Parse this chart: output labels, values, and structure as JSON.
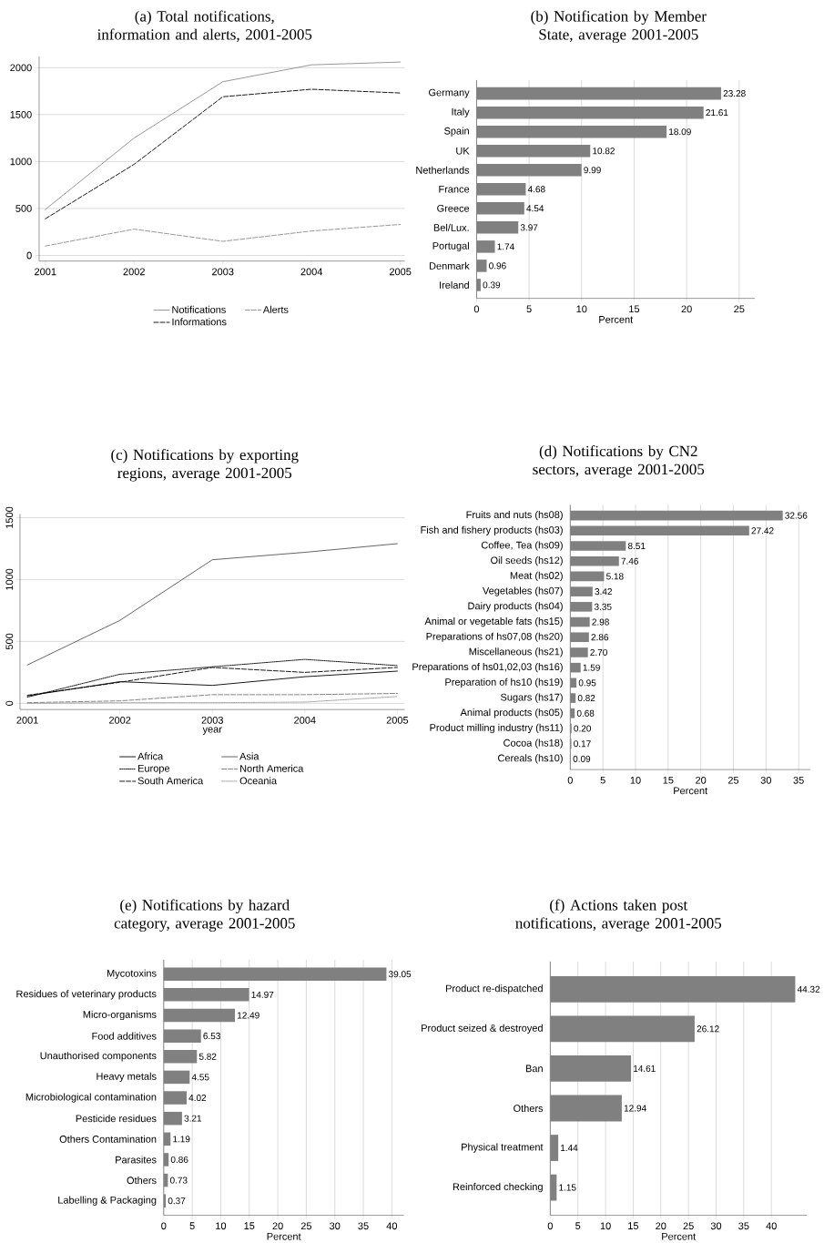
{
  "chart_data": [
    {
      "type": "line",
      "title": "(a) Total notifications, information and alerts, 2001-2005",
      "x": [
        2001,
        2002,
        2003,
        2004,
        2005
      ],
      "xlim": [
        2000.93,
        2005.05
      ],
      "ylim": [
        -60,
        2120
      ],
      "xticks": [
        2001,
        2002,
        2003,
        2004,
        2005
      ],
      "yticks": [
        0,
        500,
        1000,
        1500,
        2000
      ],
      "grid": "y",
      "legend": "bottom",
      "series": [
        {
          "name": "Notifications",
          "color": "#8c8c8c",
          "line_style": "solid",
          "values": [
            490,
            1250,
            1850,
            2030,
            2060
          ]
        },
        {
          "name": "Alerts",
          "color": "#8c8c8c",
          "line_style": "dashed",
          "values": [
            100,
            280,
            150,
            260,
            330
          ]
        },
        {
          "name": "Informations",
          "color": "#000000",
          "line_style": "dashed",
          "values": [
            390,
            970,
            1690,
            1770,
            1730
          ]
        }
      ]
    },
    {
      "type": "bar",
      "orientation": "horizontal",
      "title": "(b) Notification by Member State, average 2001-2005",
      "xlabel": "Percent",
      "categories": [
        "Germany",
        "Italy",
        "Spain",
        "UK",
        "Netherlands",
        "France",
        "Greece",
        "Bel/Lux.",
        "Portugal",
        "Denmark",
        "Ireland"
      ],
      "values": [
        23.28,
        21.61,
        18.09,
        10.82,
        9.99,
        4.68,
        4.54,
        3.97,
        1.74,
        0.96,
        0.39
      ],
      "value_labels": [
        "23.28",
        "21.61",
        "18.09",
        "10.82",
        "9.99",
        "4.68",
        "4.54",
        "3.97",
        "1.74",
        "0.96",
        "0.39"
      ],
      "color": "#808080",
      "xlim": [
        0,
        26.5
      ],
      "xticks": [
        0,
        5,
        10,
        15,
        20,
        25
      ],
      "grid": "x"
    },
    {
      "type": "line",
      "title": "(c) Notifications by exporting regions, average 2001-2005",
      "xlabel": "year",
      "x": [
        2001,
        2002,
        2003,
        2004,
        2005
      ],
      "xlim": [
        2000.92,
        2005.08
      ],
      "ylim": [
        -50,
        1530
      ],
      "xticks": [
        2001,
        2002,
        2003,
        2004,
        2005
      ],
      "yticks": [
        0,
        500,
        1000,
        1500
      ],
      "grid": "y",
      "legend": "bottom",
      "series": [
        {
          "name": "Africa",
          "color": "#000000",
          "line_style": "solid",
          "values": [
            60,
            175,
            145,
            215,
            260
          ]
        },
        {
          "name": "Asia",
          "color": "#555555",
          "line_style": "solid",
          "values": [
            310,
            670,
            1160,
            1220,
            1290
          ]
        },
        {
          "name": "Europe",
          "color": "#000000",
          "line_style": "dotted",
          "values": [
            50,
            235,
            295,
            355,
            305
          ]
        },
        {
          "name": "North America",
          "color": "#777777",
          "line_style": "dashed",
          "values": [
            5,
            20,
            70,
            70,
            80
          ]
        },
        {
          "name": "South America",
          "color": "#000000",
          "line_style": "dashed",
          "values": [
            65,
            170,
            290,
            250,
            290
          ]
        },
        {
          "name": "Oceania",
          "color": "#999999",
          "line_style": "dotted",
          "values": [
            0,
            5,
            5,
            10,
            55
          ]
        }
      ]
    },
    {
      "type": "bar",
      "orientation": "horizontal",
      "title": "(d) Notifications by CN2 sectors, average 2001-2005",
      "xlabel": "Percent",
      "categories": [
        "Fruits and nuts  (hs08)",
        "Fish and fishery products (hs03)",
        "Coffee, Tea  (hs09)",
        "Oil seeds  (hs12)",
        "Meat (hs02)",
        "Vegetables  (hs07)",
        "Dairy products (hs04)",
        "Animal or vegetable fats (hs15)",
        "Preparations of hs07,08 (hs20)",
        "Miscellaneous (hs21)",
        "Preparations of hs01,02,03 (hs16)",
        "Preparation of hs10 (hs19)",
        "Sugars (hs17)",
        "Animal products (hs05)",
        "Product milling industry  (hs11)",
        "Cocoa (hs18)",
        "Cereals  (hs10)"
      ],
      "values": [
        32.56,
        27.42,
        8.51,
        7.46,
        5.18,
        3.42,
        3.35,
        2.98,
        2.86,
        2.7,
        1.59,
        0.95,
        0.82,
        0.68,
        0.2,
        0.17,
        0.09
      ],
      "value_labels": [
        "32.56",
        "27.42",
        "8.51",
        "7.46",
        "5.18",
        "3.42",
        "3.35",
        "2.98",
        "2.86",
        "2.70",
        "1.59",
        "0.95",
        "0.82",
        "0.68",
        "0.20",
        "0.17",
        "0.09"
      ],
      "color": "#808080",
      "xlim": [
        0,
        36.8
      ],
      "xticks": [
        0,
        5,
        10,
        15,
        20,
        25,
        30,
        35
      ],
      "grid": "x"
    },
    {
      "type": "bar",
      "orientation": "horizontal",
      "title": "(e) Notifications by hazard category, average 2001-2005",
      "xlabel": "Percent",
      "categories": [
        "Mycotoxins",
        "Residues of veterinary products",
        "Micro-organisms",
        "Food additives",
        "Unauthorised components",
        "Heavy metals",
        "Microbiological contamination",
        "Pesticide residues",
        "Others Contamination",
        "Parasites",
        "Others",
        "Labelling & Packaging"
      ],
      "values": [
        39.05,
        14.97,
        12.49,
        6.53,
        5.82,
        4.55,
        4.02,
        3.21,
        1.19,
        0.86,
        0.73,
        0.37
      ],
      "value_labels": [
        "39.05",
        "14.97",
        "12.49",
        "6.53",
        "5.82",
        "4.55",
        "4.02",
        "3.21",
        "1.19",
        "0.86",
        "0.73",
        "0.37"
      ],
      "color": "#808080",
      "xlim": [
        0,
        42.1
      ],
      "xticks": [
        0,
        5,
        10,
        15,
        20,
        25,
        30,
        35,
        40
      ],
      "grid": "x"
    },
    {
      "type": "bar",
      "orientation": "horizontal",
      "title": "(f) Actions taken post notifications, average 2001-2005",
      "xlabel": "Percent",
      "categories": [
        "Product re-dispatched",
        "Product seized & destroyed",
        "Ban",
        "Others",
        "Physical treatment",
        "Reinforced checking"
      ],
      "values": [
        44.32,
        26.12,
        14.61,
        12.94,
        1.44,
        1.15
      ],
      "value_labels": [
        "44.32",
        "26.12",
        "14.61",
        "12.94",
        "1.44",
        "1.15"
      ],
      "color": "#808080",
      "xlim": [
        0,
        46.4
      ],
      "xticks": [
        0,
        5,
        10,
        15,
        20,
        25,
        30,
        35,
        40
      ],
      "grid": "x"
    }
  ]
}
